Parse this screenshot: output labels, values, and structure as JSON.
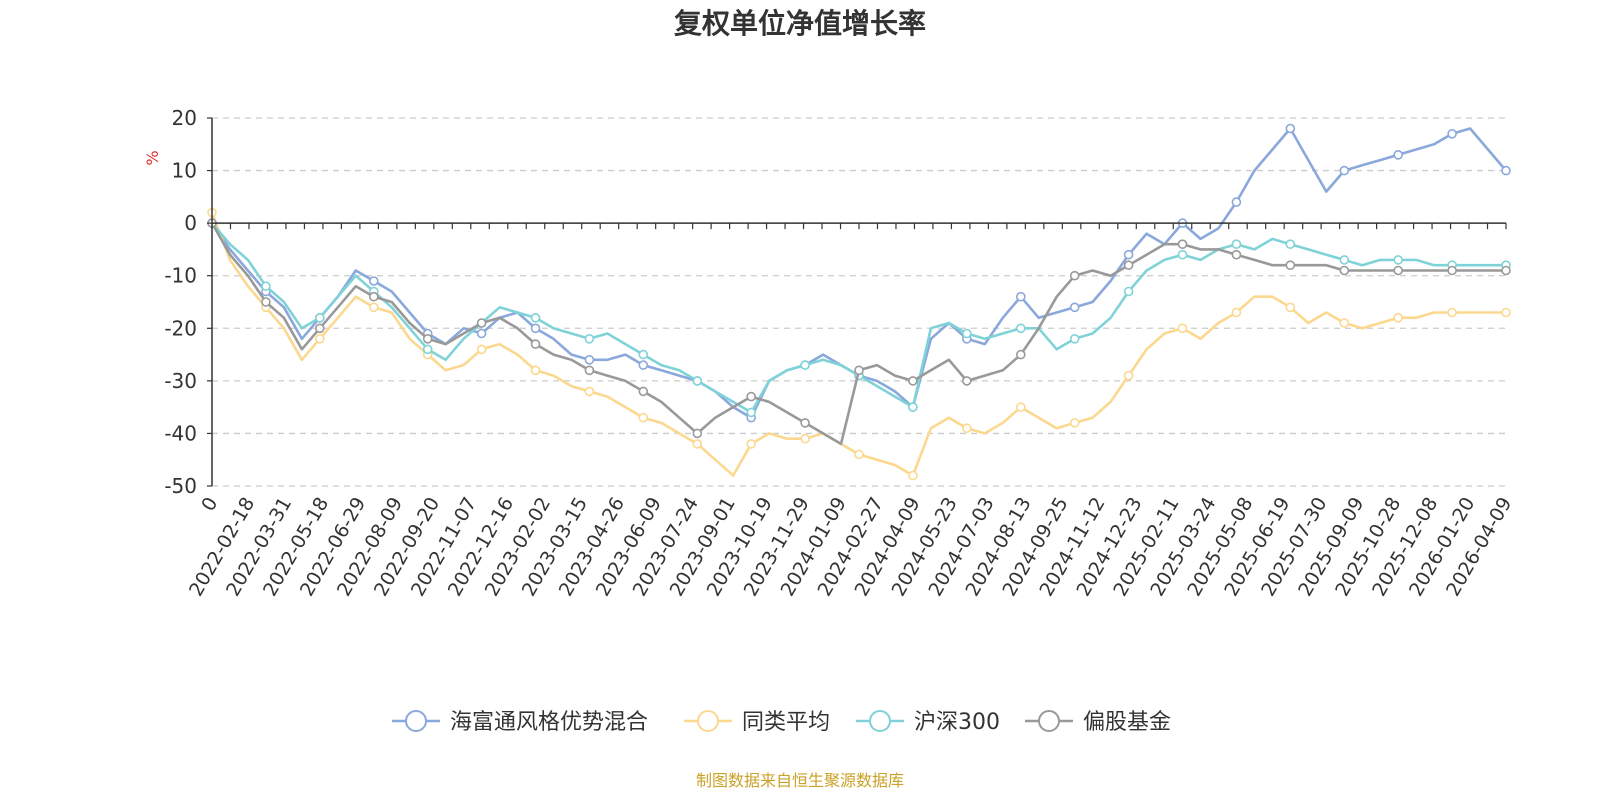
{
  "colors": {
    "fund": "#8aa8db",
    "peer": "#fcd88f",
    "hs300": "#7fd3d8",
    "equity": "#999999",
    "axis": "#333333",
    "grid": "#cccccc",
    "source": "#c9a227",
    "ylabel": "#e03030"
  },
  "footer": {
    "source": "制图数据来自恒生聚源数据库"
  },
  "chart_data": {
    "type": "line",
    "title": "复权单位净值增长率",
    "ylabel": "%",
    "xlabel": "",
    "ylim": [
      -50,
      20
    ],
    "yticks": [
      20,
      10,
      0,
      -10,
      -20,
      -30,
      -40,
      -50
    ],
    "grid": true,
    "legend_position": "bottom-center",
    "x_tick_labels": [
      "0",
      "2022-02-18",
      "2022-03-31",
      "2022-05-18",
      "2022-06-29",
      "2022-08-09",
      "2022-09-20",
      "2022-11-07",
      "2022-12-16",
      "2023-02-02",
      "2023-03-15",
      "2023-04-26",
      "2023-06-09",
      "2023-07-24",
      "2023-09-01",
      "2023-10-19",
      "2023-11-29",
      "2024-01-09",
      "2024-02-27",
      "2024-04-09",
      "2024-05-23",
      "2024-07-03",
      "2024-08-13",
      "2024-09-25",
      "2024-11-12",
      "2024-12-23",
      "2025-02-11",
      "2025-03-24",
      "2025-05-08",
      "2025-06-19",
      "2025-07-30",
      "2025-09-09",
      "2025-10-28",
      "2025-12-08",
      "2026-01-20",
      "2026-04-09"
    ],
    "x_index": [
      0,
      1,
      2,
      3,
      4,
      5,
      6,
      7,
      8,
      9,
      10,
      11,
      12,
      13,
      14,
      15,
      16,
      17,
      18,
      19,
      20,
      21,
      22,
      23,
      24,
      25,
      26,
      27,
      28,
      29,
      30,
      31,
      32,
      33,
      34,
      35,
      36,
      37,
      38,
      39,
      40,
      41,
      42,
      43,
      44,
      45,
      46,
      47,
      48,
      49,
      50,
      51,
      52,
      53,
      54,
      55,
      56,
      57,
      58,
      59,
      60,
      61,
      62,
      63,
      64,
      65,
      66,
      67,
      68,
      69,
      70,
      71,
      72
    ],
    "series": [
      {
        "name": "海富通风格优势混合",
        "color_key": "fund",
        "values": [
          0,
          -5,
          -9,
          -13,
          -16,
          -22,
          -18,
          -14,
          -9,
          -11,
          -13,
          -17,
          -21,
          -23,
          -20,
          -21,
          -18,
          -17,
          -20,
          -22,
          -25,
          -26,
          -26,
          -25,
          -27,
          -28,
          -29,
          -30,
          -32,
          -35,
          -37,
          -30,
          -28,
          -27,
          -25,
          -27,
          -29,
          -30,
          -32,
          -35,
          -22,
          -19,
          -22,
          -23,
          -18,
          -14,
          -18,
          -17,
          -16,
          -15,
          -11,
          -6,
          -2,
          -4,
          0,
          -3,
          -1,
          4,
          10,
          14,
          18,
          12,
          6,
          10,
          11,
          12,
          13,
          14,
          15,
          17,
          18,
          14,
          10
        ]
      },
      {
        "name": "同类平均",
        "color_key": "peer",
        "values": [
          2,
          -7,
          -12,
          -16,
          -20,
          -26,
          -22,
          -18,
          -14,
          -16,
          -17,
          -22,
          -25,
          -28,
          -27,
          -24,
          -23,
          -25,
          -28,
          -29,
          -31,
          -32,
          -33,
          -35,
          -37,
          -38,
          -40,
          -42,
          -45,
          -48,
          -42,
          -40,
          -41,
          -41,
          -40,
          -42,
          -44,
          -45,
          -46,
          -48,
          -39,
          -37,
          -39,
          -40,
          -38,
          -35,
          -37,
          -39,
          -38,
          -37,
          -34,
          -29,
          -24,
          -21,
          -20,
          -22,
          -19,
          -17,
          -14,
          -14,
          -16,
          -19,
          -17,
          -19,
          -20,
          -19,
          -18,
          -18,
          -17,
          -17,
          -17,
          -17,
          -17
        ]
      },
      {
        "name": "沪深300",
        "color_key": "hs300",
        "values": [
          0,
          -4,
          -7,
          -12,
          -15,
          -20,
          -18,
          -14,
          -10,
          -13,
          -16,
          -20,
          -24,
          -26,
          -22,
          -19,
          -16,
          -17,
          -18,
          -20,
          -21,
          -22,
          -21,
          -23,
          -25,
          -27,
          -28,
          -30,
          -32,
          -34,
          -36,
          -30,
          -28,
          -27,
          -26,
          -27,
          -29,
          -31,
          -33,
          -35,
          -20,
          -19,
          -21,
          -22,
          -21,
          -20,
          -20,
          -24,
          -22,
          -21,
          -18,
          -13,
          -9,
          -7,
          -6,
          -7,
          -5,
          -4,
          -5,
          -3,
          -4,
          -5,
          -6,
          -7,
          -8,
          -7,
          -7,
          -7,
          -8,
          -8,
          -8,
          -8,
          -8
        ]
      },
      {
        "name": "偏股基金",
        "color_key": "equity",
        "values": [
          0,
          -6,
          -10,
          -15,
          -18,
          -24,
          -20,
          -16,
          -12,
          -14,
          -15,
          -19,
          -22,
          -23,
          -21,
          -19,
          -18,
          -20,
          -23,
          -25,
          -26,
          -28,
          -29,
          -30,
          -32,
          -34,
          -37,
          -40,
          -37,
          -35,
          -33,
          -34,
          -36,
          -38,
          -40,
          -42,
          -28,
          -27,
          -29,
          -30,
          -28,
          -26,
          -30,
          -29,
          -28,
          -25,
          -20,
          -14,
          -10,
          -9,
          -10,
          -8,
          -6,
          -4,
          -4,
          -5,
          -5,
          -6,
          -7,
          -8,
          -8,
          -8,
          -8,
          -9,
          -9,
          -9,
          -9,
          -9,
          -9,
          -9,
          -9,
          -9,
          -9
        ]
      }
    ]
  }
}
